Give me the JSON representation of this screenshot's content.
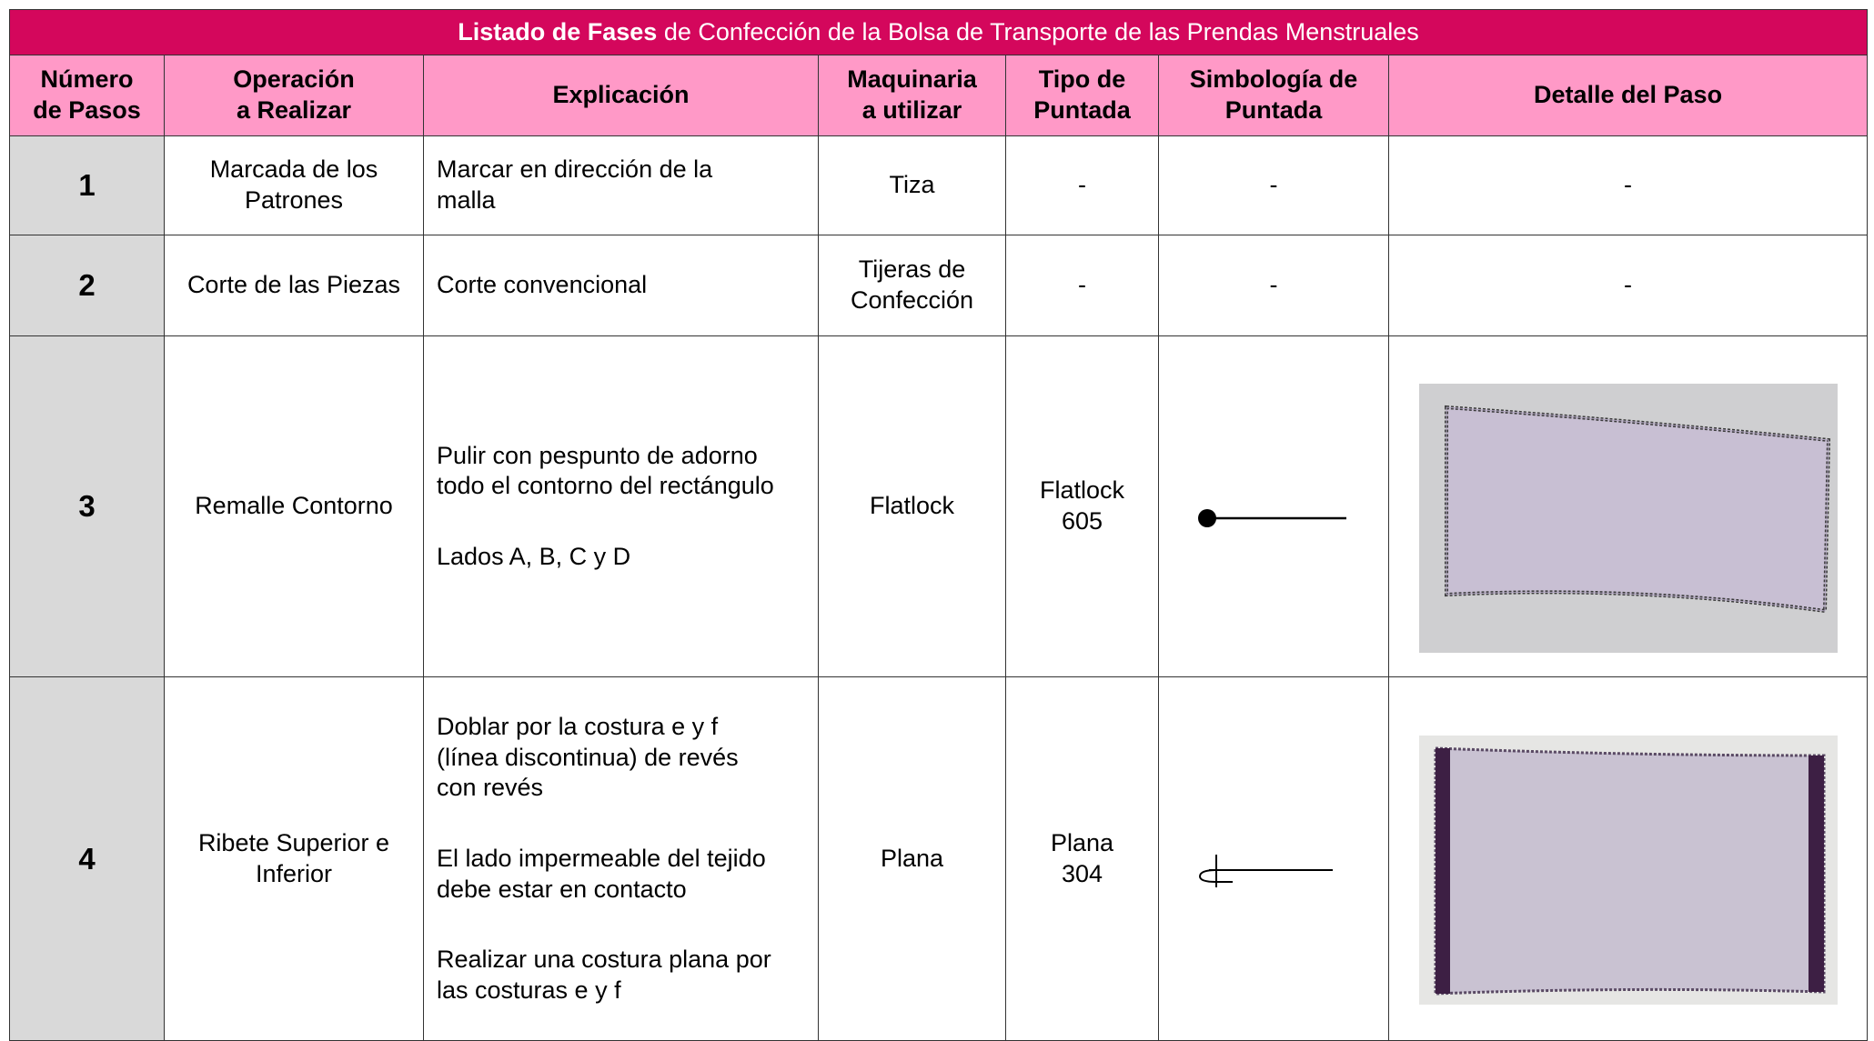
{
  "table": {
    "title_bold": "Listado de Fases",
    "title_rest": "de Confección de la Bolsa de Transporte de las Prendas Menstruales",
    "headers": [
      "Número\nde Pasos",
      "Operación\na Realizar",
      "Explicación",
      "Maquinaria\na utilizar",
      "Tipo de\nPuntada",
      "Simbología de\nPuntada",
      "Detalle del Paso"
    ],
    "rows": [
      {
        "step": "1",
        "operation": "Marcada de los\nPatrones",
        "explanation": [
          "Marcar en dirección de la\nmalla"
        ],
        "machine": "Tiza",
        "stitch_type": "-",
        "symbol": "-",
        "detail": "-"
      },
      {
        "step": "2",
        "operation": "Corte de las Piezas",
        "explanation": [
          "Corte convencional"
        ],
        "machine": "Tijeras de\nConfección",
        "stitch_type": "-",
        "symbol": "-",
        "detail": "-"
      },
      {
        "step": "3",
        "operation": "Remalle Contorno",
        "explanation": [
          "Pulir con pespunto de adorno\ntodo el contorno del rectángulo",
          "Lados A, B, C y D"
        ],
        "machine": "Flatlock",
        "stitch_type": "Flatlock\n605"
      },
      {
        "step": "4",
        "operation": "Ribete Superior e\nInferior",
        "explanation": [
          "Doblar por la costura e y f\n(línea discontinua) de revés\ncon revés",
          "El lado impermeable del tejido\ndebe estar en contacto",
          "Realizar una costura plana por\nlas costuras e y f"
        ],
        "machine": "Plana",
        "stitch_type": "Plana\n304"
      }
    ]
  }
}
